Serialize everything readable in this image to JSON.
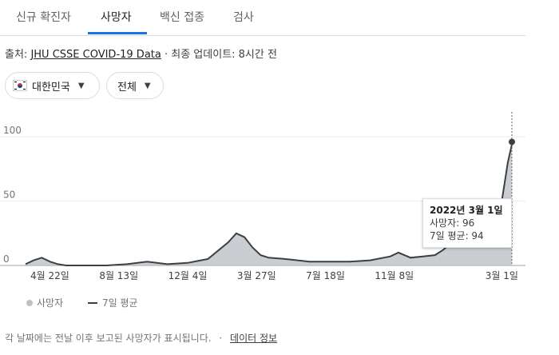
{
  "tabs": [
    {
      "label": "신규 확진자",
      "active": false
    },
    {
      "label": "사망자",
      "active": true
    },
    {
      "label": "백신 접종",
      "active": false
    },
    {
      "label": "검사",
      "active": false
    }
  ],
  "source": {
    "prefix": "출처: ",
    "link": "JHU CSSE COVID-19 Data",
    "updated": " · 최종 업데이트: 8시간 전"
  },
  "filters": {
    "country": "대한민국",
    "range": "전체"
  },
  "chart_data": {
    "type": "bar",
    "y_ticks": [
      0,
      50,
      100
    ],
    "ylim": [
      0,
      120
    ],
    "x_tick_labels": [
      "4월 22일",
      "8월 13일",
      "12월 4일",
      "3월 27일",
      "7월 18일",
      "11월 8일",
      "3월 1일"
    ],
    "grid": true,
    "series": [
      {
        "name": "사망자",
        "color": "#bdc1c6"
      },
      {
        "name": "7일 평균",
        "color": "#3c4043"
      }
    ],
    "avg_points": [
      [
        0,
        1
      ],
      [
        4,
        4
      ],
      [
        8,
        6
      ],
      [
        12,
        3
      ],
      [
        16,
        1
      ],
      [
        20,
        0
      ],
      [
        40,
        0
      ],
      [
        50,
        1
      ],
      [
        60,
        3
      ],
      [
        70,
        1
      ],
      [
        80,
        2
      ],
      [
        90,
        5
      ],
      [
        100,
        18
      ],
      [
        104,
        25
      ],
      [
        108,
        22
      ],
      [
        112,
        14
      ],
      [
        116,
        8
      ],
      [
        120,
        6
      ],
      [
        128,
        5
      ],
      [
        140,
        3
      ],
      [
        150,
        3
      ],
      [
        160,
        3
      ],
      [
        170,
        4
      ],
      [
        180,
        7
      ],
      [
        184,
        10
      ],
      [
        190,
        6
      ],
      [
        196,
        7
      ],
      [
        202,
        8
      ],
      [
        206,
        12
      ],
      [
        212,
        20
      ],
      [
        216,
        32
      ],
      [
        218,
        36
      ],
      [
        222,
        40
      ],
      [
        226,
        35
      ],
      [
        230,
        20
      ],
      [
        234,
        40
      ],
      [
        236,
        60
      ],
      [
        238,
        80
      ],
      [
        240,
        94
      ]
    ],
    "tooltip": {
      "date": "2022년 3월 1일",
      "deaths_label": "사망자: 96",
      "avg_label": "7일 평균: 94",
      "deaths": 96,
      "avg": 94
    }
  },
  "legend": {
    "deaths": "사망자",
    "avg": "7일 평균"
  },
  "footer": {
    "note": "각 날짜에는 전날 이후 보고된 사망자가 표시됩니다.",
    "sep": "·",
    "link": "데이터 정보"
  }
}
